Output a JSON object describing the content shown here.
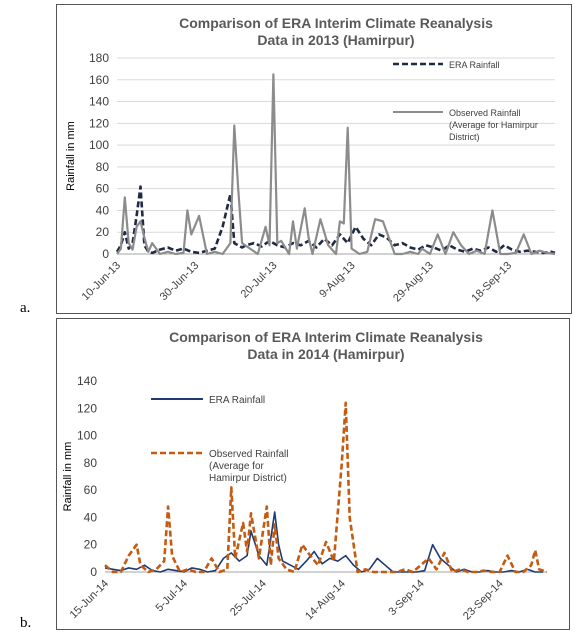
{
  "panels": [
    "a.",
    "b."
  ],
  "chart_data": [
    {
      "type": "line",
      "title": "Comparison of ERA Interim Climate Reanalysis Data in 2013 (Hamirpur)",
      "title_lines": [
        "Comparison of ERA Interim Climate Reanalysis",
        "Data in 2013 (Hamirpur)"
      ],
      "xlabel": "",
      "ylabel": "Rainfall in mm",
      "ylim": [
        0,
        180
      ],
      "yticks": [
        0,
        20,
        40,
        60,
        80,
        100,
        120,
        140,
        160,
        180
      ],
      "xlim": [
        "2013-06-10",
        "2013-09-30"
      ],
      "xticks": [
        "10-Jun-13",
        "30-Jun-13",
        "20-Jul-13",
        "9-Aug-13",
        "29-Aug-13",
        "18-Sep-13"
      ],
      "grid": true,
      "legend": "right",
      "series": [
        {
          "name": "ERA Rainfall",
          "color": "#1f2a44",
          "dash": "dashed",
          "x": [
            "2013-06-10",
            "2013-06-11",
            "2013-06-12",
            "2013-06-13",
            "2013-06-14",
            "2013-06-15",
            "2013-06-16",
            "2013-06-17",
            "2013-06-18",
            "2013-06-19",
            "2013-06-21",
            "2013-06-23",
            "2013-06-25",
            "2013-06-27",
            "2013-06-29",
            "2013-07-01",
            "2013-07-03",
            "2013-07-05",
            "2013-07-07",
            "2013-07-09",
            "2013-07-10",
            "2013-07-11",
            "2013-07-12",
            "2013-07-13",
            "2013-07-15",
            "2013-07-17",
            "2013-07-19",
            "2013-07-21",
            "2013-07-23",
            "2013-07-25",
            "2013-07-27",
            "2013-07-29",
            "2013-07-31",
            "2013-08-02",
            "2013-08-04",
            "2013-08-06",
            "2013-08-08",
            "2013-08-10",
            "2013-08-12",
            "2013-08-14",
            "2013-08-16",
            "2013-08-18",
            "2013-08-20",
            "2013-08-22",
            "2013-08-24",
            "2013-08-26",
            "2013-08-28",
            "2013-08-30",
            "2013-09-01",
            "2013-09-03",
            "2013-09-05",
            "2013-09-07",
            "2013-09-09",
            "2013-09-11",
            "2013-09-13",
            "2013-09-15",
            "2013-09-17",
            "2013-09-19",
            "2013-09-21",
            "2013-09-23",
            "2013-09-25",
            "2013-09-27",
            "2013-09-29",
            "2013-09-30"
          ],
          "y": [
            2,
            8,
            20,
            5,
            10,
            35,
            62,
            8,
            2,
            1,
            4,
            6,
            3,
            5,
            2,
            1,
            3,
            5,
            25,
            55,
            10,
            8,
            6,
            8,
            10,
            7,
            12,
            8,
            6,
            10,
            8,
            12,
            6,
            14,
            8,
            18,
            10,
            25,
            14,
            8,
            18,
            15,
            8,
            10,
            6,
            4,
            8,
            6,
            3,
            8,
            4,
            2,
            5,
            3,
            6,
            2,
            8,
            4,
            2,
            3,
            2,
            1,
            2,
            1
          ]
        },
        {
          "name": "Observed Rainfall (Average for Hamirpur District)",
          "legend_lines": [
            "Observed Rainfall",
            "(Average for Hamirpur",
            "District)"
          ],
          "color": "#8c8c8c",
          "dash": "solid",
          "x": [
            "2013-06-10",
            "2013-06-11",
            "2013-06-12",
            "2013-06-13",
            "2013-06-14",
            "2013-06-15",
            "2013-06-16",
            "2013-06-17",
            "2013-06-18",
            "2013-06-19",
            "2013-06-21",
            "2013-06-23",
            "2013-06-25",
            "2013-06-27",
            "2013-06-28",
            "2013-06-29",
            "2013-07-01",
            "2013-07-03",
            "2013-07-05",
            "2013-07-07",
            "2013-07-09",
            "2013-07-10",
            "2013-07-11",
            "2013-07-12",
            "2013-07-14",
            "2013-07-16",
            "2013-07-18",
            "2013-07-19",
            "2013-07-20",
            "2013-07-21",
            "2013-07-22",
            "2013-07-24",
            "2013-07-25",
            "2013-07-26",
            "2013-07-28",
            "2013-07-29",
            "2013-07-30",
            "2013-08-01",
            "2013-08-03",
            "2013-08-05",
            "2013-08-06",
            "2013-08-07",
            "2013-08-08",
            "2013-08-09",
            "2013-08-11",
            "2013-08-13",
            "2013-08-15",
            "2013-08-17",
            "2013-08-19",
            "2013-08-20",
            "2013-08-22",
            "2013-08-24",
            "2013-08-26",
            "2013-08-27",
            "2013-08-29",
            "2013-08-31",
            "2013-09-02",
            "2013-09-04",
            "2013-09-06",
            "2013-09-08",
            "2013-09-10",
            "2013-09-12",
            "2013-09-14",
            "2013-09-16",
            "2013-09-18",
            "2013-09-20",
            "2013-09-22",
            "2013-09-24",
            "2013-09-26",
            "2013-09-28",
            "2013-09-30"
          ],
          "y": [
            0,
            5,
            52,
            10,
            4,
            25,
            30,
            15,
            2,
            10,
            0,
            2,
            0,
            1,
            40,
            18,
            35,
            0,
            2,
            0,
            10,
            118,
            60,
            10,
            5,
            0,
            25,
            8,
            165,
            10,
            12,
            0,
            30,
            5,
            42,
            15,
            0,
            32,
            8,
            0,
            30,
            28,
            116,
            5,
            0,
            2,
            32,
            30,
            10,
            0,
            0,
            2,
            0,
            5,
            0,
            18,
            0,
            20,
            8,
            0,
            3,
            0,
            40,
            0,
            0,
            1,
            18,
            0,
            3,
            1,
            0
          ]
        }
      ]
    },
    {
      "type": "line",
      "title": "Comparison of ERA Interim Climate Reanalysis Data in 2014 (Hamirpur)",
      "title_lines": [
        "Comparison of ERA Interim Climate Reanalysis",
        "Data in 2014 (Hamirpur)"
      ],
      "xlabel": "",
      "ylabel": "Rainfall in mm",
      "ylim": [
        0,
        140
      ],
      "yticks": [
        0,
        20,
        40,
        60,
        80,
        100,
        120,
        140
      ],
      "xlim": [
        "2014-06-15",
        "2014-10-05"
      ],
      "xticks": [
        "15-Jun-14",
        "5-Jul-14",
        "25-Jul-14",
        "14-Aug-14",
        "3-Sep-14",
        "23-Sep-14"
      ],
      "grid": false,
      "legend": "left",
      "series": [
        {
          "name": "ERA Rainfall",
          "color": "#1f3b73",
          "dash": "solid",
          "x": [
            "2014-06-15",
            "2014-06-17",
            "2014-06-19",
            "2014-06-21",
            "2014-06-23",
            "2014-06-25",
            "2014-06-27",
            "2014-06-29",
            "2014-07-01",
            "2014-07-03",
            "2014-07-05",
            "2014-07-07",
            "2014-07-09",
            "2014-07-11",
            "2014-07-13",
            "2014-07-15",
            "2014-07-17",
            "2014-07-19",
            "2014-07-21",
            "2014-07-22",
            "2014-07-24",
            "2014-07-26",
            "2014-07-28",
            "2014-07-29",
            "2014-07-30",
            "2014-08-01",
            "2014-08-03",
            "2014-08-05",
            "2014-08-07",
            "2014-08-09",
            "2014-08-11",
            "2014-08-13",
            "2014-08-15",
            "2014-08-17",
            "2014-08-19",
            "2014-08-21",
            "2014-08-23",
            "2014-08-25",
            "2014-08-27",
            "2014-08-29",
            "2014-08-31",
            "2014-09-02",
            "2014-09-04",
            "2014-09-06",
            "2014-09-08",
            "2014-09-10",
            "2014-09-12",
            "2014-09-14",
            "2014-09-16",
            "2014-09-18",
            "2014-09-20",
            "2014-09-22",
            "2014-09-24",
            "2014-09-26",
            "2014-09-28",
            "2014-09-30",
            "2014-10-02",
            "2014-10-04"
          ],
          "y": [
            3,
            2,
            1,
            3,
            2,
            5,
            1,
            0,
            2,
            1,
            0,
            3,
            2,
            0,
            1,
            10,
            14,
            8,
            12,
            30,
            12,
            5,
            44,
            20,
            8,
            5,
            2,
            8,
            15,
            6,
            10,
            8,
            12,
            5,
            0,
            2,
            10,
            5,
            0,
            0,
            0,
            0,
            1,
            20,
            10,
            5,
            0,
            2,
            0,
            0,
            1,
            0,
            0,
            1,
            0,
            2,
            0,
            0
          ]
        },
        {
          "name": "Observed Rainfall (Average for Hamirpur District)",
          "legend_lines": [
            "Observed Rainfall",
            "(Average for",
            "Hamirpur District)"
          ],
          "color": "#c55a11",
          "dash": "dashed",
          "x": [
            "2014-06-15",
            "2014-06-17",
            "2014-06-19",
            "2014-06-21",
            "2014-06-23",
            "2014-06-24",
            "2014-06-26",
            "2014-06-28",
            "2014-06-30",
            "2014-07-01",
            "2014-07-02",
            "2014-07-04",
            "2014-07-06",
            "2014-07-08",
            "2014-07-10",
            "2014-07-12",
            "2014-07-14",
            "2014-07-16",
            "2014-07-17",
            "2014-07-18",
            "2014-07-20",
            "2014-07-21",
            "2014-07-22",
            "2014-07-24",
            "2014-07-26",
            "2014-07-27",
            "2014-07-28",
            "2014-07-29",
            "2014-07-31",
            "2014-08-02",
            "2014-08-04",
            "2014-08-06",
            "2014-08-08",
            "2014-08-10",
            "2014-08-12",
            "2014-08-14",
            "2014-08-15",
            "2014-08-16",
            "2014-08-18",
            "2014-08-20",
            "2014-08-22",
            "2014-08-24",
            "2014-08-26",
            "2014-08-28",
            "2014-08-30",
            "2014-09-01",
            "2014-09-03",
            "2014-09-05",
            "2014-09-07",
            "2014-09-09",
            "2014-09-11",
            "2014-09-13",
            "2014-09-15",
            "2014-09-17",
            "2014-09-19",
            "2014-09-21",
            "2014-09-23",
            "2014-09-25",
            "2014-09-27",
            "2014-09-29",
            "2014-10-01",
            "2014-10-02",
            "2014-10-03",
            "2014-10-05"
          ],
          "y": [
            5,
            0,
            0,
            12,
            20,
            5,
            0,
            2,
            8,
            48,
            12,
            0,
            2,
            0,
            0,
            10,
            0,
            2,
            62,
            10,
            36,
            15,
            43,
            10,
            48,
            5,
            35,
            10,
            2,
            0,
            20,
            12,
            5,
            22,
            8,
            80,
            124,
            40,
            0,
            2,
            0,
            0,
            0,
            0,
            2,
            0,
            5,
            10,
            2,
            14,
            0,
            2,
            0,
            0,
            1,
            0,
            0,
            12,
            0,
            0,
            5,
            16,
            2,
            0
          ]
        }
      ]
    }
  ]
}
